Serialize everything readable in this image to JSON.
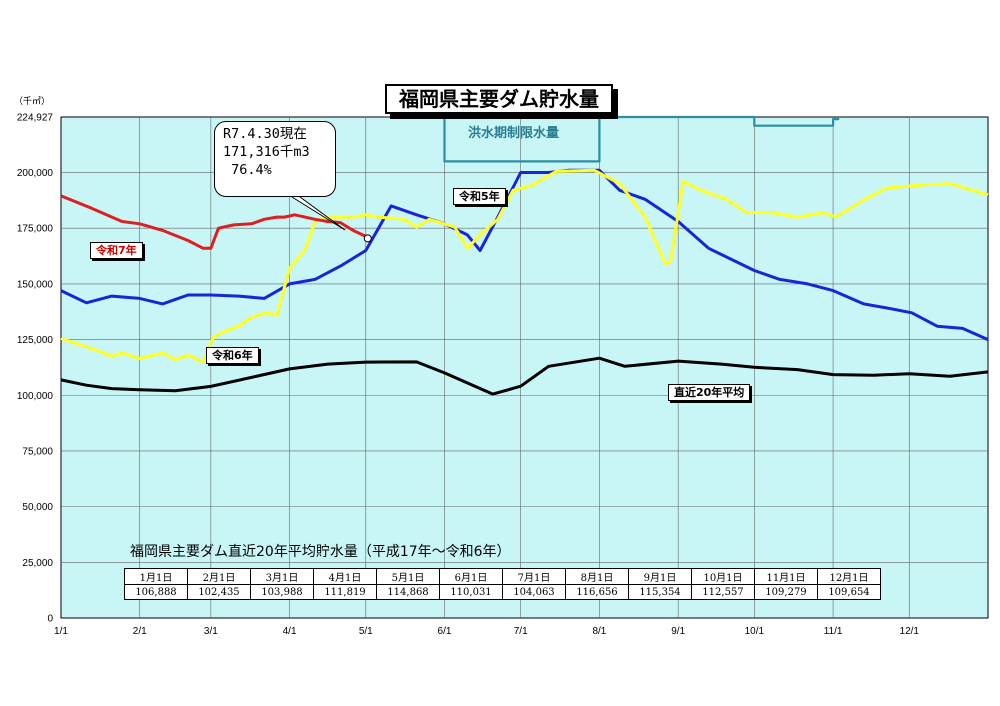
{
  "title": "福岡県主要ダム貯水量",
  "unit_label": "（千㎥）",
  "callout": [
    "R7.4.30現在",
    "171,316千m3",
    " 76.4%"
  ],
  "flood_label": "洪水期制限水量",
  "series_labels": {
    "r7": "令和7年",
    "r6": "令和6年",
    "r5": "令和5年",
    "avg": "直近20年平均"
  },
  "avg_table_title": "福岡県主要ダム直近20年平均貯水量（平成17年～令和6年）",
  "avg_table": {
    "headers": [
      "1月1日",
      "2月1日",
      "3月1日",
      "4月1日",
      "5月1日",
      "6月1日",
      "7月1日",
      "8月1日",
      "9月1日",
      "10月1日",
      "11月1日",
      "12月1日"
    ],
    "values": [
      "106,888",
      "102,435",
      "103,988",
      "111,819",
      "114,868",
      "110,031",
      "104,063",
      "116,656",
      "115,354",
      "112,557",
      "109,279",
      "109,654"
    ]
  },
  "chart_data": {
    "type": "line",
    "title": "福岡県主要ダム貯水量",
    "ylabel": "（千㎥）",
    "ylim": [
      0,
      224927
    ],
    "xlim": [
      0,
      365
    ],
    "ytick_values": [
      0,
      25000,
      50000,
      75000,
      100000,
      125000,
      150000,
      175000,
      200000,
      224927
    ],
    "ytick_labels": [
      "0",
      "25,000",
      "50,000",
      "75,000",
      "100,000",
      "125,000",
      "150,000",
      "175,000",
      "200,000",
      "224,927"
    ],
    "xtick_values": [
      0,
      31,
      59,
      90,
      120,
      151,
      181,
      212,
      243,
      273,
      304,
      334
    ],
    "xtick_labels": [
      "1/1",
      "2/1",
      "3/1",
      "4/1",
      "5/1",
      "6/1",
      "7/1",
      "8/1",
      "9/1",
      "10/1",
      "11/1",
      "12/1"
    ],
    "grid": true,
    "background": "#c8f5f5",
    "colors": {
      "r7": "#dd1f1f",
      "r6": "#ffff22",
      "r5": "#1a24d8",
      "avg": "#000000",
      "flood": "#2a8fa3"
    },
    "series": [
      {
        "name": "令和7年",
        "key": "r7",
        "x": [
          0,
          12,
          24,
          31,
          40,
          50,
          56,
          59,
          62,
          68,
          75,
          80,
          85,
          88,
          92,
          100,
          105,
          110,
          115,
          120
        ],
        "y": [
          189500,
          184000,
          178000,
          177000,
          174000,
          169500,
          166000,
          166000,
          175000,
          176500,
          177000,
          179000,
          180000,
          180000,
          181000,
          179000,
          178000,
          177500,
          174000,
          171316
        ]
      },
      {
        "name": "令和6年",
        "key": "r6",
        "x": [
          0,
          12,
          20,
          24,
          31,
          40,
          45,
          50,
          56,
          60,
          64,
          70,
          75,
          81,
          85,
          90,
          96,
          100,
          105,
          115,
          120,
          125,
          135,
          140,
          145,
          155,
          160,
          165,
          172,
          178,
          185,
          195,
          210,
          220,
          230,
          238,
          240,
          245,
          252,
          262,
          270,
          280,
          290,
          300,
          305,
          315,
          325,
          340,
          350,
          365
        ],
        "y": [
          125500,
          121000,
          117500,
          119000,
          116500,
          119000,
          116000,
          118000,
          115000,
          126000,
          128500,
          131000,
          135000,
          137000,
          136000,
          157000,
          165000,
          178000,
          180000,
          180000,
          181000,
          180000,
          179000,
          175500,
          179000,
          175500,
          166000,
          172000,
          179000,
          192000,
          194000,
          200500,
          201000,
          195000,
          180000,
          159000,
          160000,
          196000,
          192000,
          188000,
          182000,
          182000,
          180000,
          182000,
          180000,
          187000,
          193000,
          194500,
          195000,
          190000
        ]
      },
      {
        "name": "令和5年",
        "key": "r5",
        "x": [
          0,
          10,
          20,
          31,
          40,
          50,
          59,
          70,
          80,
          90,
          100,
          110,
          120,
          130,
          140,
          151,
          160,
          165,
          172,
          181,
          192,
          200,
          212,
          220,
          230,
          243,
          255,
          273,
          283,
          294,
          304,
          316,
          326,
          335,
          345,
          355,
          365
        ],
        "y": [
          147000,
          141500,
          144500,
          143500,
          141000,
          145000,
          145000,
          144500,
          143500,
          150000,
          152000,
          158000,
          165000,
          185000,
          181000,
          177000,
          172000,
          165000,
          180000,
          200000,
          200000,
          201000,
          201000,
          192000,
          188000,
          178000,
          166000,
          156000,
          152000,
          150000,
          147000,
          141000,
          139000,
          137000,
          131000,
          130000,
          125000
        ]
      },
      {
        "name": "直近20年平均",
        "key": "avg",
        "x": [
          0,
          10,
          20,
          31,
          45,
          59,
          75,
          90,
          105,
          120,
          140,
          151,
          170,
          181,
          192,
          212,
          222,
          243,
          260,
          273,
          290,
          304,
          320,
          334,
          350,
          365
        ],
        "y": [
          106888,
          104500,
          103000,
          102435,
          102000,
          103988,
          108000,
          111819,
          114000,
          114868,
          115000,
          110031,
          100500,
          104063,
          113000,
          116656,
          113000,
          115354,
          114000,
          112557,
          111500,
          109279,
          109000,
          109654,
          108500,
          110500
        ]
      },
      {
        "name": "洪水期制限水量",
        "key": "flood",
        "x": [
          151,
          151,
          212,
          212,
          273,
          273,
          304,
          304,
          306,
          306
        ],
        "y": [
          224927,
          205000,
          205000,
          224927,
          224927,
          221000,
          221000,
          224000,
          224000,
          224927
        ]
      }
    ]
  }
}
